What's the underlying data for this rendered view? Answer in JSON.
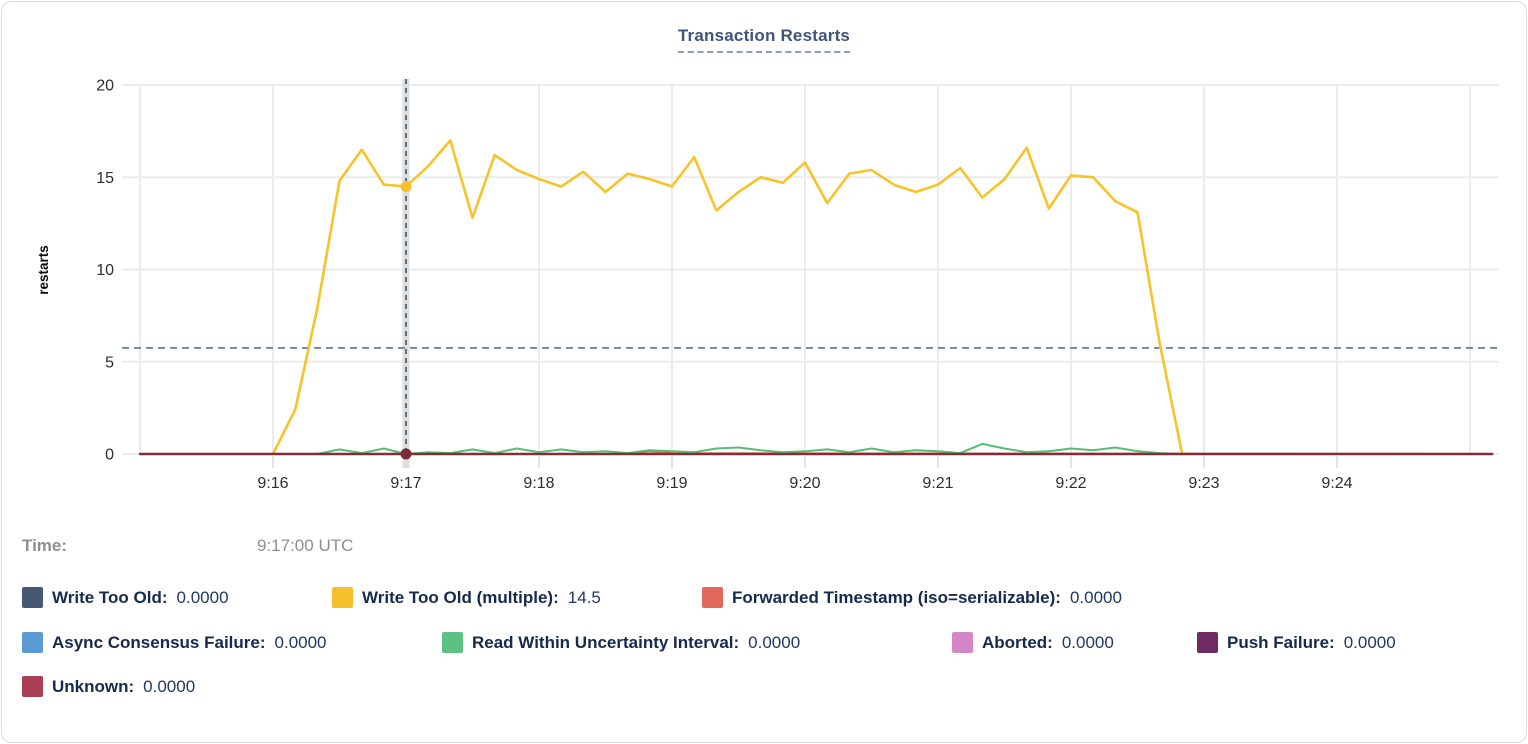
{
  "chart": {
    "title": "Transaction Restarts",
    "ylabel": "restarts"
  },
  "time_row": {
    "label": "Time:",
    "value": "9:17:00 UTC"
  },
  "legend": {
    "rows": [
      [
        0,
        1,
        2
      ],
      [
        3,
        4,
        5,
        6
      ],
      [
        7
      ]
    ],
    "items": [
      {
        "label": "Write Too Old",
        "value": "0.0000",
        "color": "#475872"
      },
      {
        "label": "Write Too Old (multiple)",
        "value": "14.5",
        "color": "#F5C02C"
      },
      {
        "label": "Forwarded Timestamp (iso=serializable)",
        "value": "0.0000",
        "color": "#E2685C"
      },
      {
        "label": "Async Consensus Failure",
        "value": "0.0000",
        "color": "#599AD3"
      },
      {
        "label": "Read Within Uncertainty Interval",
        "value": "0.0000",
        "color": "#5CC284"
      },
      {
        "label": "Aborted",
        "value": "0.0000",
        "color": "#D486C9"
      },
      {
        "label": "Push Failure",
        "value": "0.0000",
        "color": "#6E2B61"
      },
      {
        "label": "Unknown",
        "value": "0.0000",
        "color": "#A83F55"
      }
    ]
  },
  "chart_data": {
    "type": "line",
    "title": "Transaction Restarts",
    "xlabel": "",
    "ylabel": "restarts",
    "ylim": [
      0,
      20
    ],
    "yticks": [
      0,
      5,
      10,
      15,
      20
    ],
    "xticks": [
      "9:16",
      "9:17",
      "9:18",
      "9:19",
      "9:20",
      "9:21",
      "9:22",
      "9:23",
      "9:24"
    ],
    "x_window": {
      "start": "9:15:00",
      "end": "9:25:12",
      "unlabeled_gridlines": [
        "9:15",
        "9:25"
      ]
    },
    "grid": true,
    "legend_position": "bottom",
    "crosshair": {
      "time": "9:17:00",
      "hline_value": 5.75,
      "dots": [
        {
          "series": "Write Too Old (multiple)",
          "value": 14.5,
          "color": "#F5C02C"
        },
        {
          "series": "Unknown",
          "value": 0,
          "color": "#7E2A37"
        }
      ]
    },
    "series": [
      {
        "name": "Write Too Old",
        "color": "#475872",
        "value_at_cursor": "0.0000",
        "points": [
          [
            "9:15:00",
            0
          ],
          [
            "9:25:10",
            0
          ]
        ]
      },
      {
        "name": "Write Too Old (multiple)",
        "color": "#F5C02C",
        "line_color": "#F6C32B",
        "value_at_cursor": "14.5",
        "points": [
          [
            "9:16:00",
            0
          ],
          [
            "9:16:10",
            2.4
          ],
          [
            "9:16:20",
            7.9
          ],
          [
            "9:16:30",
            14.8
          ],
          [
            "9:16:40",
            16.5
          ],
          [
            "9:16:50",
            14.6
          ],
          [
            "9:17:00",
            14.5
          ],
          [
            "9:17:10",
            15.6
          ],
          [
            "9:17:20",
            17.0
          ],
          [
            "9:17:30",
            12.8
          ],
          [
            "9:17:40",
            16.2
          ],
          [
            "9:17:50",
            15.4
          ],
          [
            "9:18:00",
            14.9
          ],
          [
            "9:18:10",
            14.5
          ],
          [
            "9:18:20",
            15.3
          ],
          [
            "9:18:30",
            14.2
          ],
          [
            "9:18:40",
            15.2
          ],
          [
            "9:18:50",
            14.9
          ],
          [
            "9:19:00",
            14.5
          ],
          [
            "9:19:10",
            16.1
          ],
          [
            "9:19:20",
            13.2
          ],
          [
            "9:19:30",
            14.2
          ],
          [
            "9:19:40",
            15.0
          ],
          [
            "9:19:50",
            14.7
          ],
          [
            "9:20:00",
            15.8
          ],
          [
            "9:20:10",
            13.6
          ],
          [
            "9:20:20",
            15.2
          ],
          [
            "9:20:30",
            15.4
          ],
          [
            "9:20:40",
            14.6
          ],
          [
            "9:20:50",
            14.2
          ],
          [
            "9:21:00",
            14.6
          ],
          [
            "9:21:10",
            15.5
          ],
          [
            "9:21:20",
            13.9
          ],
          [
            "9:21:30",
            14.9
          ],
          [
            "9:21:40",
            16.6
          ],
          [
            "9:21:50",
            13.3
          ],
          [
            "9:22:00",
            15.1
          ],
          [
            "9:22:10",
            15.0
          ],
          [
            "9:22:20",
            13.7
          ],
          [
            "9:22:30",
            13.1
          ],
          [
            "9:22:40",
            6.0
          ],
          [
            "9:22:50",
            0.1
          ]
        ]
      },
      {
        "name": "Forwarded Timestamp (iso=serializable)",
        "color": "#E2685C",
        "value_at_cursor": "0.0000",
        "points": [
          [
            "9:15:00",
            0
          ],
          [
            "9:18:40",
            0
          ],
          [
            "9:18:50",
            0.15
          ],
          [
            "9:19:00",
            0.04
          ],
          [
            "9:25:10",
            0
          ]
        ]
      },
      {
        "name": "Async Consensus Failure",
        "color": "#599AD3",
        "value_at_cursor": "0.0000",
        "points": [
          [
            "9:15:00",
            0
          ],
          [
            "9:25:10",
            0
          ]
        ]
      },
      {
        "name": "Read Within Uncertainty Interval",
        "color": "#5CC284",
        "line_color": "#56BD72",
        "value_at_cursor": "0.0000",
        "points": [
          [
            "9:16:20",
            0
          ],
          [
            "9:16:30",
            0.25
          ],
          [
            "9:16:40",
            0.05
          ],
          [
            "9:16:50",
            0.3
          ],
          [
            "9:17:00",
            0
          ],
          [
            "9:17:10",
            0.1
          ],
          [
            "9:17:20",
            0.05
          ],
          [
            "9:17:30",
            0.25
          ],
          [
            "9:17:40",
            0.05
          ],
          [
            "9:17:50",
            0.3
          ],
          [
            "9:18:00",
            0.1
          ],
          [
            "9:18:10",
            0.25
          ],
          [
            "9:18:20",
            0.1
          ],
          [
            "9:18:30",
            0.15
          ],
          [
            "9:18:40",
            0.05
          ],
          [
            "9:18:50",
            0.2
          ],
          [
            "9:19:00",
            0.15
          ],
          [
            "9:19:10",
            0.1
          ],
          [
            "9:19:20",
            0.3
          ],
          [
            "9:19:30",
            0.35
          ],
          [
            "9:19:40",
            0.2
          ],
          [
            "9:19:50",
            0.1
          ],
          [
            "9:20:00",
            0.15
          ],
          [
            "9:20:10",
            0.25
          ],
          [
            "9:20:20",
            0.1
          ],
          [
            "9:20:30",
            0.3
          ],
          [
            "9:20:40",
            0.1
          ],
          [
            "9:20:50",
            0.2
          ],
          [
            "9:21:00",
            0.15
          ],
          [
            "9:21:10",
            0.05
          ],
          [
            "9:21:20",
            0.55
          ],
          [
            "9:21:30",
            0.3
          ],
          [
            "9:21:40",
            0.1
          ],
          [
            "9:21:50",
            0.15
          ],
          [
            "9:22:00",
            0.3
          ],
          [
            "9:22:10",
            0.2
          ],
          [
            "9:22:20",
            0.35
          ],
          [
            "9:22:30",
            0.15
          ],
          [
            "9:22:40",
            0.05
          ],
          [
            "9:22:50",
            0
          ]
        ]
      },
      {
        "name": "Aborted",
        "color": "#D486C9",
        "value_at_cursor": "0.0000",
        "points": [
          [
            "9:15:00",
            0
          ],
          [
            "9:25:10",
            0
          ]
        ]
      },
      {
        "name": "Push Failure",
        "color": "#6E2B61",
        "value_at_cursor": "0.0000",
        "points": [
          [
            "9:15:00",
            0
          ],
          [
            "9:25:10",
            0
          ]
        ]
      },
      {
        "name": "Unknown",
        "color": "#A83F55",
        "line_color": "#822C3B",
        "value_at_cursor": "0.0000",
        "points": [
          [
            "9:15:00",
            0
          ],
          [
            "9:25:10",
            0
          ]
        ]
      }
    ]
  }
}
